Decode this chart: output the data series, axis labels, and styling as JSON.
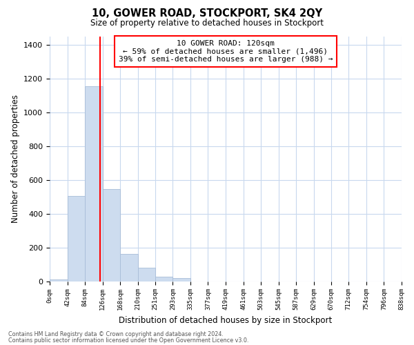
{
  "title": "10, GOWER ROAD, STOCKPORT, SK4 2QY",
  "subtitle": "Size of property relative to detached houses in Stockport",
  "xlabel": "Distribution of detached houses by size in Stockport",
  "ylabel": "Number of detached properties",
  "bar_color": "#cddcef",
  "bar_edge_color": "#a8bdd8",
  "bin_labels": [
    "0sqm",
    "42sqm",
    "84sqm",
    "126sqm",
    "168sqm",
    "210sqm",
    "251sqm",
    "293sqm",
    "335sqm",
    "377sqm",
    "419sqm",
    "461sqm",
    "503sqm",
    "545sqm",
    "587sqm",
    "629sqm",
    "670sqm",
    "712sqm",
    "754sqm",
    "796sqm",
    "838sqm"
  ],
  "bin_edges": [
    0,
    42,
    84,
    126,
    168,
    210,
    251,
    293,
    335,
    377,
    419,
    461,
    503,
    545,
    587,
    629,
    670,
    712,
    754,
    796,
    838
  ],
  "values": [
    10,
    505,
    1155,
    545,
    160,
    80,
    25,
    20,
    0,
    0,
    0,
    0,
    0,
    0,
    0,
    0,
    0,
    0,
    0,
    0
  ],
  "ylim": [
    0,
    1450
  ],
  "yticks": [
    0,
    200,
    400,
    600,
    800,
    1000,
    1200,
    1400
  ],
  "property_line_x": 120,
  "annotation_title": "10 GOWER ROAD: 120sqm",
  "annotation_line1": "← 59% of detached houses are smaller (1,496)",
  "annotation_line2": "39% of semi-detached houses are larger (988) →",
  "footnote1": "Contains HM Land Registry data © Crown copyright and database right 2024.",
  "footnote2": "Contains public sector information licensed under the Open Government Licence v3.0.",
  "grid_color": "#c8d8ee"
}
